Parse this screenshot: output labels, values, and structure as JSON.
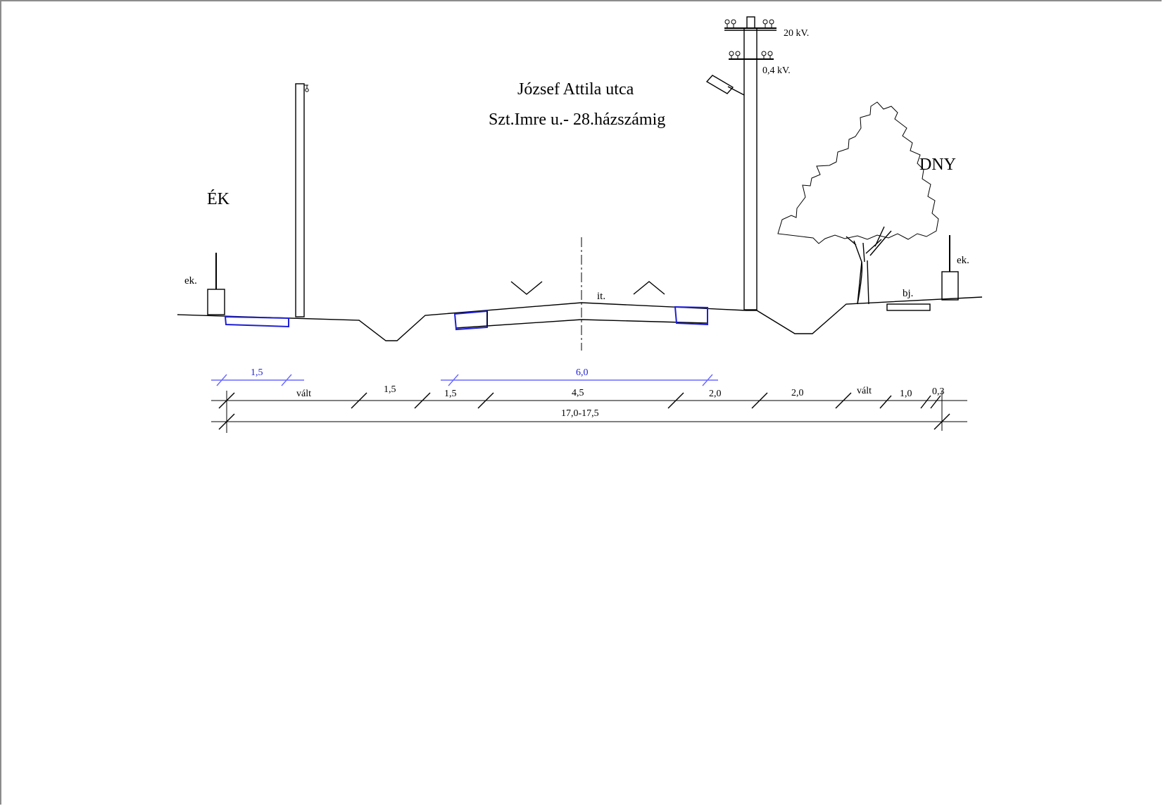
{
  "title": {
    "line1": "József Attila  utca",
    "line2": "Szt.Imre u.-  28.házszámig"
  },
  "directions": {
    "left": "ÉK",
    "right": "DNY"
  },
  "labels": {
    "ek_left": "ek.",
    "ek_right": "ek.",
    "it": "it.",
    "bj": "bj.",
    "kv20": "20 kV.",
    "kv04": "0,4 kV."
  },
  "dimensions": {
    "blue": [
      "1,5",
      "6,0"
    ],
    "row1": [
      "vált",
      "1,5",
      "1,5",
      "4,5",
      "2,0",
      "2,0",
      "vált",
      "1,0",
      "0,3"
    ],
    "total": "17,0-17,5"
  },
  "colors": {
    "line": "#000000",
    "accent_blue": "#1f1fd6",
    "dim_blue": "#6a6aff",
    "frame": "#8c8c8c"
  }
}
